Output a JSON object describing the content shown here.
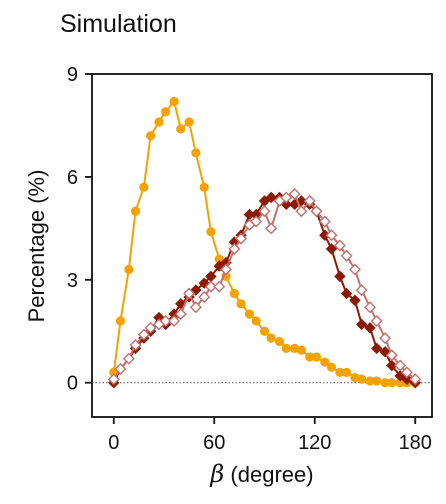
{
  "header": {
    "title": "Simulation"
  },
  "chart_data": {
    "type": "line",
    "title": "Simulation",
    "xlabel_symbol": "β",
    "xlabel_rest": " (degree)",
    "ylabel": "Percentage (%)",
    "xlim": [
      -13,
      190
    ],
    "ylim": [
      -1,
      9
    ],
    "xticks": [
      0,
      60,
      120,
      180
    ],
    "yticks": [
      0,
      3,
      6,
      9
    ],
    "xtick_labels": [
      "0",
      "60",
      "120",
      "180"
    ],
    "ytick_labels": [
      "0",
      "3",
      "6",
      "9"
    ],
    "zero_reference_line": true,
    "series": [
      {
        "color": "#F5A200",
        "marker": "circle",
        "x": [
          0,
          4,
          9,
          13,
          18,
          22,
          27,
          31,
          36,
          40,
          45,
          49,
          54,
          58,
          63,
          67,
          72,
          76,
          81,
          85,
          90,
          94,
          99,
          103,
          108,
          112,
          117,
          121,
          126,
          130,
          135,
          139,
          144,
          148,
          153,
          157,
          162,
          166,
          171,
          175,
          180
        ],
        "y": [
          0.3,
          1.8,
          3.3,
          5.0,
          5.7,
          7.2,
          7.6,
          7.9,
          8.2,
          7.4,
          7.6,
          6.7,
          5.7,
          4.4,
          3.6,
          3.1,
          2.6,
          2.3,
          2.0,
          1.8,
          1.5,
          1.3,
          1.2,
          1.0,
          1.0,
          0.95,
          0.75,
          0.75,
          0.6,
          0.45,
          0.3,
          0.3,
          0.15,
          0.1,
          0.05,
          0.05,
          0.0,
          0.0,
          0.0,
          0.0,
          0.0
        ]
      },
      {
        "color": "#8B1A00",
        "marker": "filled-diamond",
        "x": [
          0,
          4,
          9,
          13,
          18,
          22,
          27,
          31,
          36,
          40,
          45,
          49,
          54,
          58,
          63,
          67,
          72,
          76,
          81,
          85,
          90,
          94,
          99,
          103,
          108,
          112,
          117,
          121,
          126,
          130,
          135,
          139,
          144,
          148,
          153,
          157,
          162,
          166,
          171,
          175,
          180
        ],
        "y": [
          0.0,
          0.4,
          0.7,
          1.0,
          1.3,
          1.5,
          1.9,
          1.7,
          2.0,
          2.3,
          2.5,
          2.7,
          2.9,
          3.1,
          3.4,
          3.5,
          4.1,
          4.3,
          4.9,
          4.9,
          5.3,
          5.4,
          5.4,
          5.2,
          5.2,
          5.3,
          5.2,
          5.0,
          4.3,
          3.9,
          3.1,
          2.6,
          2.4,
          1.7,
          1.6,
          1.0,
          0.9,
          0.5,
          0.2,
          0.1,
          0.0
        ]
      },
      {
        "color": "#C76E6E",
        "marker": "hollow-diamond",
        "x": [
          0,
          4,
          9,
          13,
          18,
          22,
          27,
          31,
          36,
          40,
          45,
          49,
          54,
          58,
          63,
          67,
          72,
          76,
          81,
          85,
          90,
          94,
          99,
          103,
          108,
          112,
          117,
          121,
          126,
          130,
          135,
          139,
          144,
          148,
          153,
          157,
          162,
          166,
          171,
          175,
          180
        ],
        "y": [
          0.1,
          0.4,
          0.7,
          1.1,
          1.4,
          1.6,
          1.7,
          1.8,
          1.8,
          2.0,
          2.6,
          2.2,
          2.5,
          2.8,
          2.8,
          3.3,
          3.9,
          4.2,
          4.6,
          4.7,
          5.0,
          4.5,
          5.3,
          5.4,
          5.5,
          5.0,
          5.3,
          5.0,
          4.7,
          4.3,
          4.0,
          3.7,
          3.3,
          2.7,
          2.2,
          1.8,
          1.3,
          0.8,
          0.5,
          0.3,
          0.1
        ]
      }
    ]
  }
}
